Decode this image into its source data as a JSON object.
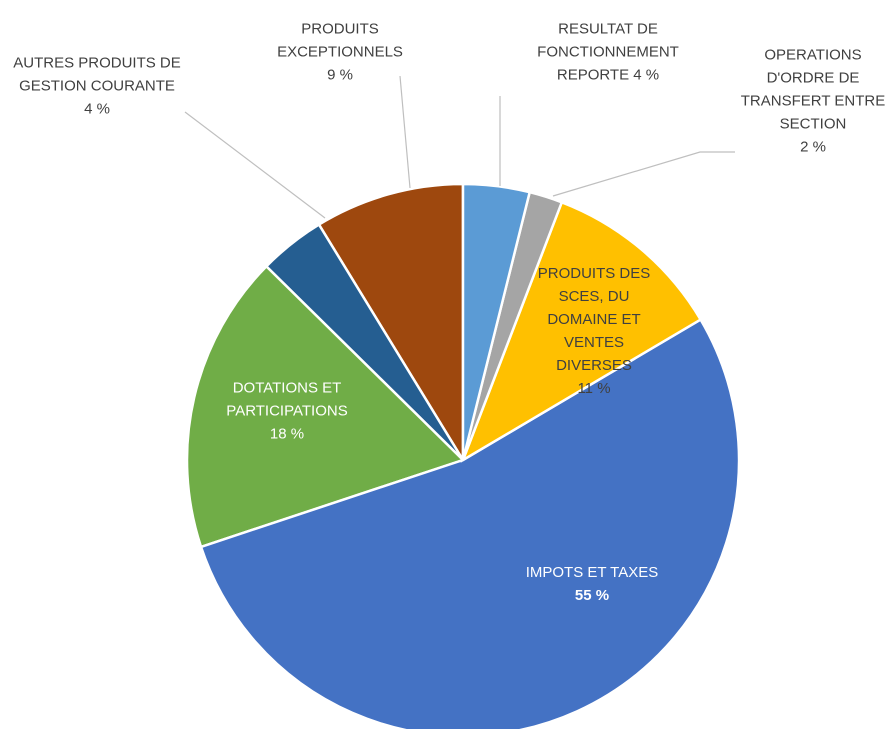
{
  "chart_data": {
    "type": "pie",
    "categories": [
      "RESULTAT DE FONCTIONNEMENT REPORTE",
      "OPERATIONS D'ORDRE DE TRANSFERT ENTRE SECTION",
      "PRODUITS DES SCES, DU DOMAINE ET VENTES DIVERSES",
      "IMPOTS ET TAXES",
      "DOTATIONS ET PARTICIPATIONS",
      "AUTRES PRODUITS DE GESTION COURANTE",
      "PRODUITS EXCEPTIONNELS"
    ],
    "values": [
      4,
      2,
      11,
      55,
      18,
      4,
      9
    ],
    "value_labels": [
      "4 %",
      "2 %",
      "11 %",
      "55 %",
      "18 %",
      "4 %",
      "9 %"
    ],
    "colors": [
      "#5b9bd5",
      "#a5a5a5",
      "#ffc000",
      "#4472c4",
      "#70ad47",
      "#255e91",
      "#9e480e"
    ]
  }
}
